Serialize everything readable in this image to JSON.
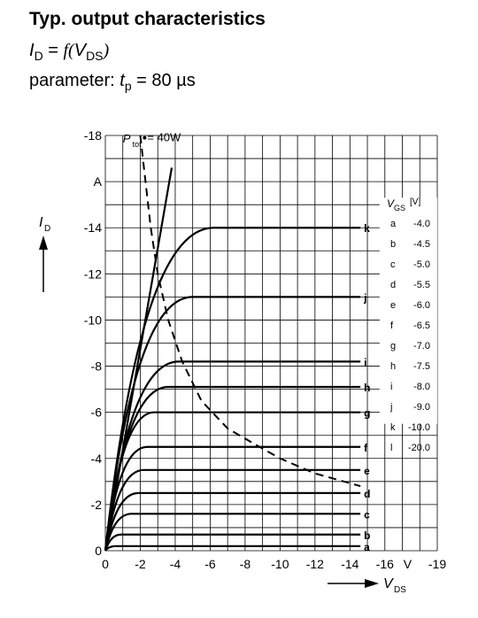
{
  "header": {
    "title": "Typ. output characteristics",
    "eq_var": "I",
    "eq_var_sub": "D",
    "eq_eq": " = ",
    "eq_f": "f",
    "eq_paren_open": "(",
    "eq_arg": "V",
    "eq_arg_sub": "DS",
    "eq_paren_close": ")",
    "param_label": "parameter: ",
    "param_var": "t",
    "param_var_sub": "p",
    "param_value": " = 80 µs"
  },
  "chart_data": {
    "type": "line",
    "title": "Typ. output characteristics",
    "xlabel": "V",
    "xlabel_sub": "DS",
    "x_unit": "V",
    "ylabel": "I",
    "ylabel_sub": "D",
    "y_unit": "A",
    "xlim": [
      0,
      -19
    ],
    "ylim": [
      0,
      -18
    ],
    "grid": true,
    "x_ticks": [
      {
        "v": 0,
        "label": "0"
      },
      {
        "v": -2,
        "label": "-2"
      },
      {
        "v": -4,
        "label": "-4"
      },
      {
        "v": -6,
        "label": "-6"
      },
      {
        "v": -8,
        "label": "-8"
      },
      {
        "v": -10,
        "label": "-10"
      },
      {
        "v": -12,
        "label": "-12"
      },
      {
        "v": -14,
        "label": "-14"
      },
      {
        "v": -16,
        "label": "-16"
      },
      {
        "v": -19,
        "label": "-19"
      }
    ],
    "y_ticks": [
      {
        "v": 0,
        "label": "0"
      },
      {
        "v": -2,
        "label": "-2"
      },
      {
        "v": -4,
        "label": "-4"
      },
      {
        "v": -6,
        "label": "-6"
      },
      {
        "v": -8,
        "label": "-8"
      },
      {
        "v": -10,
        "label": "-10"
      },
      {
        "v": -12,
        "label": "-12"
      },
      {
        "v": -14,
        "label": "-14"
      },
      {
        "v": -18,
        "label": "-18"
      }
    ],
    "ptot_label": "P",
    "ptot_sub": "tot",
    "ptot_value": "= 40W",
    "ptot_curve": [
      [
        -2.0,
        -18.0
      ],
      [
        -2.3,
        -16.0
      ],
      [
        -2.6,
        -14.0
      ],
      [
        -3.0,
        -12.0
      ],
      [
        -3.6,
        -10.0
      ],
      [
        -4.4,
        -8.2
      ],
      [
        -5.5,
        -6.5
      ],
      [
        -7.0,
        -5.3
      ],
      [
        -8.6,
        -4.6
      ],
      [
        -10.0,
        -4.0
      ],
      [
        -12.0,
        -3.35
      ],
      [
        -14.6,
        -2.8
      ]
    ],
    "legend_title": "V",
    "legend_title_sub": "GS",
    "legend_unit": "[V]",
    "series": [
      {
        "name": "a",
        "vgs": "-4.0",
        "id_sat": -0.2,
        "knee": -0.6
      },
      {
        "name": "b",
        "vgs": "-4.5",
        "id_sat": -0.7,
        "knee": -0.9
      },
      {
        "name": "c",
        "vgs": "-5.0",
        "id_sat": -1.6,
        "knee": -1.5
      },
      {
        "name": "d",
        "vgs": "-5.5",
        "id_sat": -2.5,
        "knee": -1.9
      },
      {
        "name": "e",
        "vgs": "-6.0",
        "id_sat": -3.5,
        "knee": -2.2
      },
      {
        "name": "f",
        "vgs": "-6.5",
        "id_sat": -4.5,
        "knee": -2.4
      },
      {
        "name": "g",
        "vgs": "-7.0",
        "id_sat": -6.0,
        "knee": -2.8
      },
      {
        "name": "h",
        "vgs": "-7.5",
        "id_sat": -7.1,
        "knee": -3.6
      },
      {
        "name": "i",
        "vgs": "-8.0",
        "id_sat": -8.2,
        "knee": -4.2
      },
      {
        "name": "j",
        "vgs": "-9.0",
        "id_sat": -11.0,
        "knee": -5.0
      },
      {
        "name": "k",
        "vgs": "-10.0",
        "id_sat": -14.0,
        "knee": -6.2
      },
      {
        "name": "l",
        "vgs": "-20.0",
        "id_sat": null,
        "end": [
          -3.8,
          -16.6
        ]
      }
    ]
  }
}
